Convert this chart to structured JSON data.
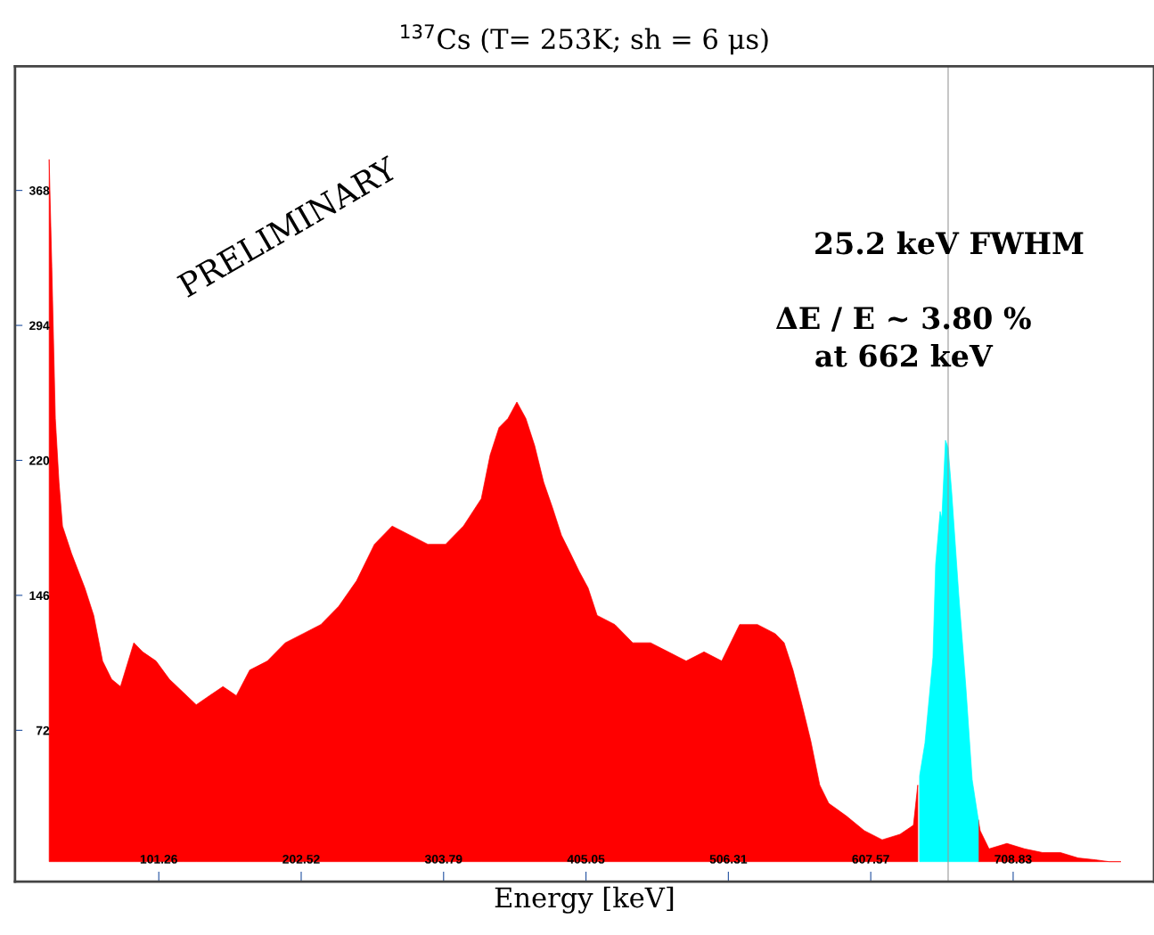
{
  "chart_data": {
    "type": "area",
    "title": "$^{137}$Cs (T= 253K; sh = 6 μs)",
    "xlabel": "Energy [keV]",
    "xlim": [
      -1,
      809
    ],
    "ylim": [
      -11,
      436
    ],
    "xticks": [
      101.26,
      202.52,
      303.79,
      405.05,
      506.31,
      607.57,
      708.83
    ],
    "yticks": [
      72,
      146,
      220,
      294,
      368
    ],
    "grid": false,
    "series": [
      {
        "color": "#ff0000",
        "x": [
          23.3,
          25.2,
          27.7,
          30.3,
          32.8,
          39.2,
          48.7,
          55.0,
          61.3,
          67.7,
          74.0,
          83.5,
          89.8,
          99.3,
          108.8,
          118.4,
          127.9,
          137.3,
          146.9,
          156.4,
          165.9,
          178.5,
          191.2,
          203.9,
          216.5,
          229.2,
          241.9,
          254.6,
          267.2,
          279.9,
          292.6,
          305.2,
          317.9,
          330.6,
          336.9,
          343.2,
          349.6,
          355.9,
          362.3,
          368.6,
          375.0,
          381.3,
          387.6,
          394.0,
          400.3,
          406.6,
          413.0,
          425.6,
          438.3,
          451.0,
          463.6,
          476.3,
          489.0,
          501.6,
          514.3,
          527.0,
          539.6,
          546.0,
          552.3,
          558.7,
          565.0,
          571.3,
          577.7,
          590.3,
          603.0,
          615.7,
          628.4,
          637.9,
          641.0,
          662.6,
          684.1,
          685.4,
          691.7,
          704.4,
          717.0,
          729.7,
          742.4,
          755.1,
          767.7,
          777.2,
          785.5
        ],
        "values": [
          385,
          326,
          243,
          208,
          184,
          169,
          150,
          135,
          110,
          100,
          96,
          120,
          115,
          110,
          100,
          93,
          86,
          91,
          96,
          91,
          105,
          110,
          120,
          125,
          130,
          140,
          154,
          174,
          184,
          179,
          174,
          174,
          184,
          199,
          223,
          238,
          243,
          252,
          243,
          228,
          208,
          194,
          179,
          169,
          159,
          150,
          135,
          130,
          120,
          120,
          115,
          110,
          115,
          110,
          130,
          130,
          125,
          120,
          105,
          86,
          66,
          42,
          32,
          25,
          17,
          12,
          15,
          20,
          42,
          null,
          23,
          17,
          7,
          10,
          7,
          5,
          5,
          2,
          1,
          0,
          0
        ]
      },
      {
        "color": "#00ffff",
        "x": [
          642.3,
          646.1,
          651.8,
          653.7,
          656.9,
          658.1,
          660.7,
          662.6,
          665.1,
          670.2,
          675.2,
          679.7,
          684.1
        ],
        "values": [
          47,
          65,
          112,
          163,
          192,
          188,
          231,
          227,
          203,
          146,
          96,
          45,
          23
        ]
      }
    ],
    "ref_lines": [
      {
        "axis": "x",
        "value": 662.6,
        "color": "#999999"
      }
    ],
    "annotations": [
      "PRELIMINARY",
      "25.2 keV FWHM",
      "ΔE / E ~ 3.80 %\nat 662 keV"
    ]
  }
}
